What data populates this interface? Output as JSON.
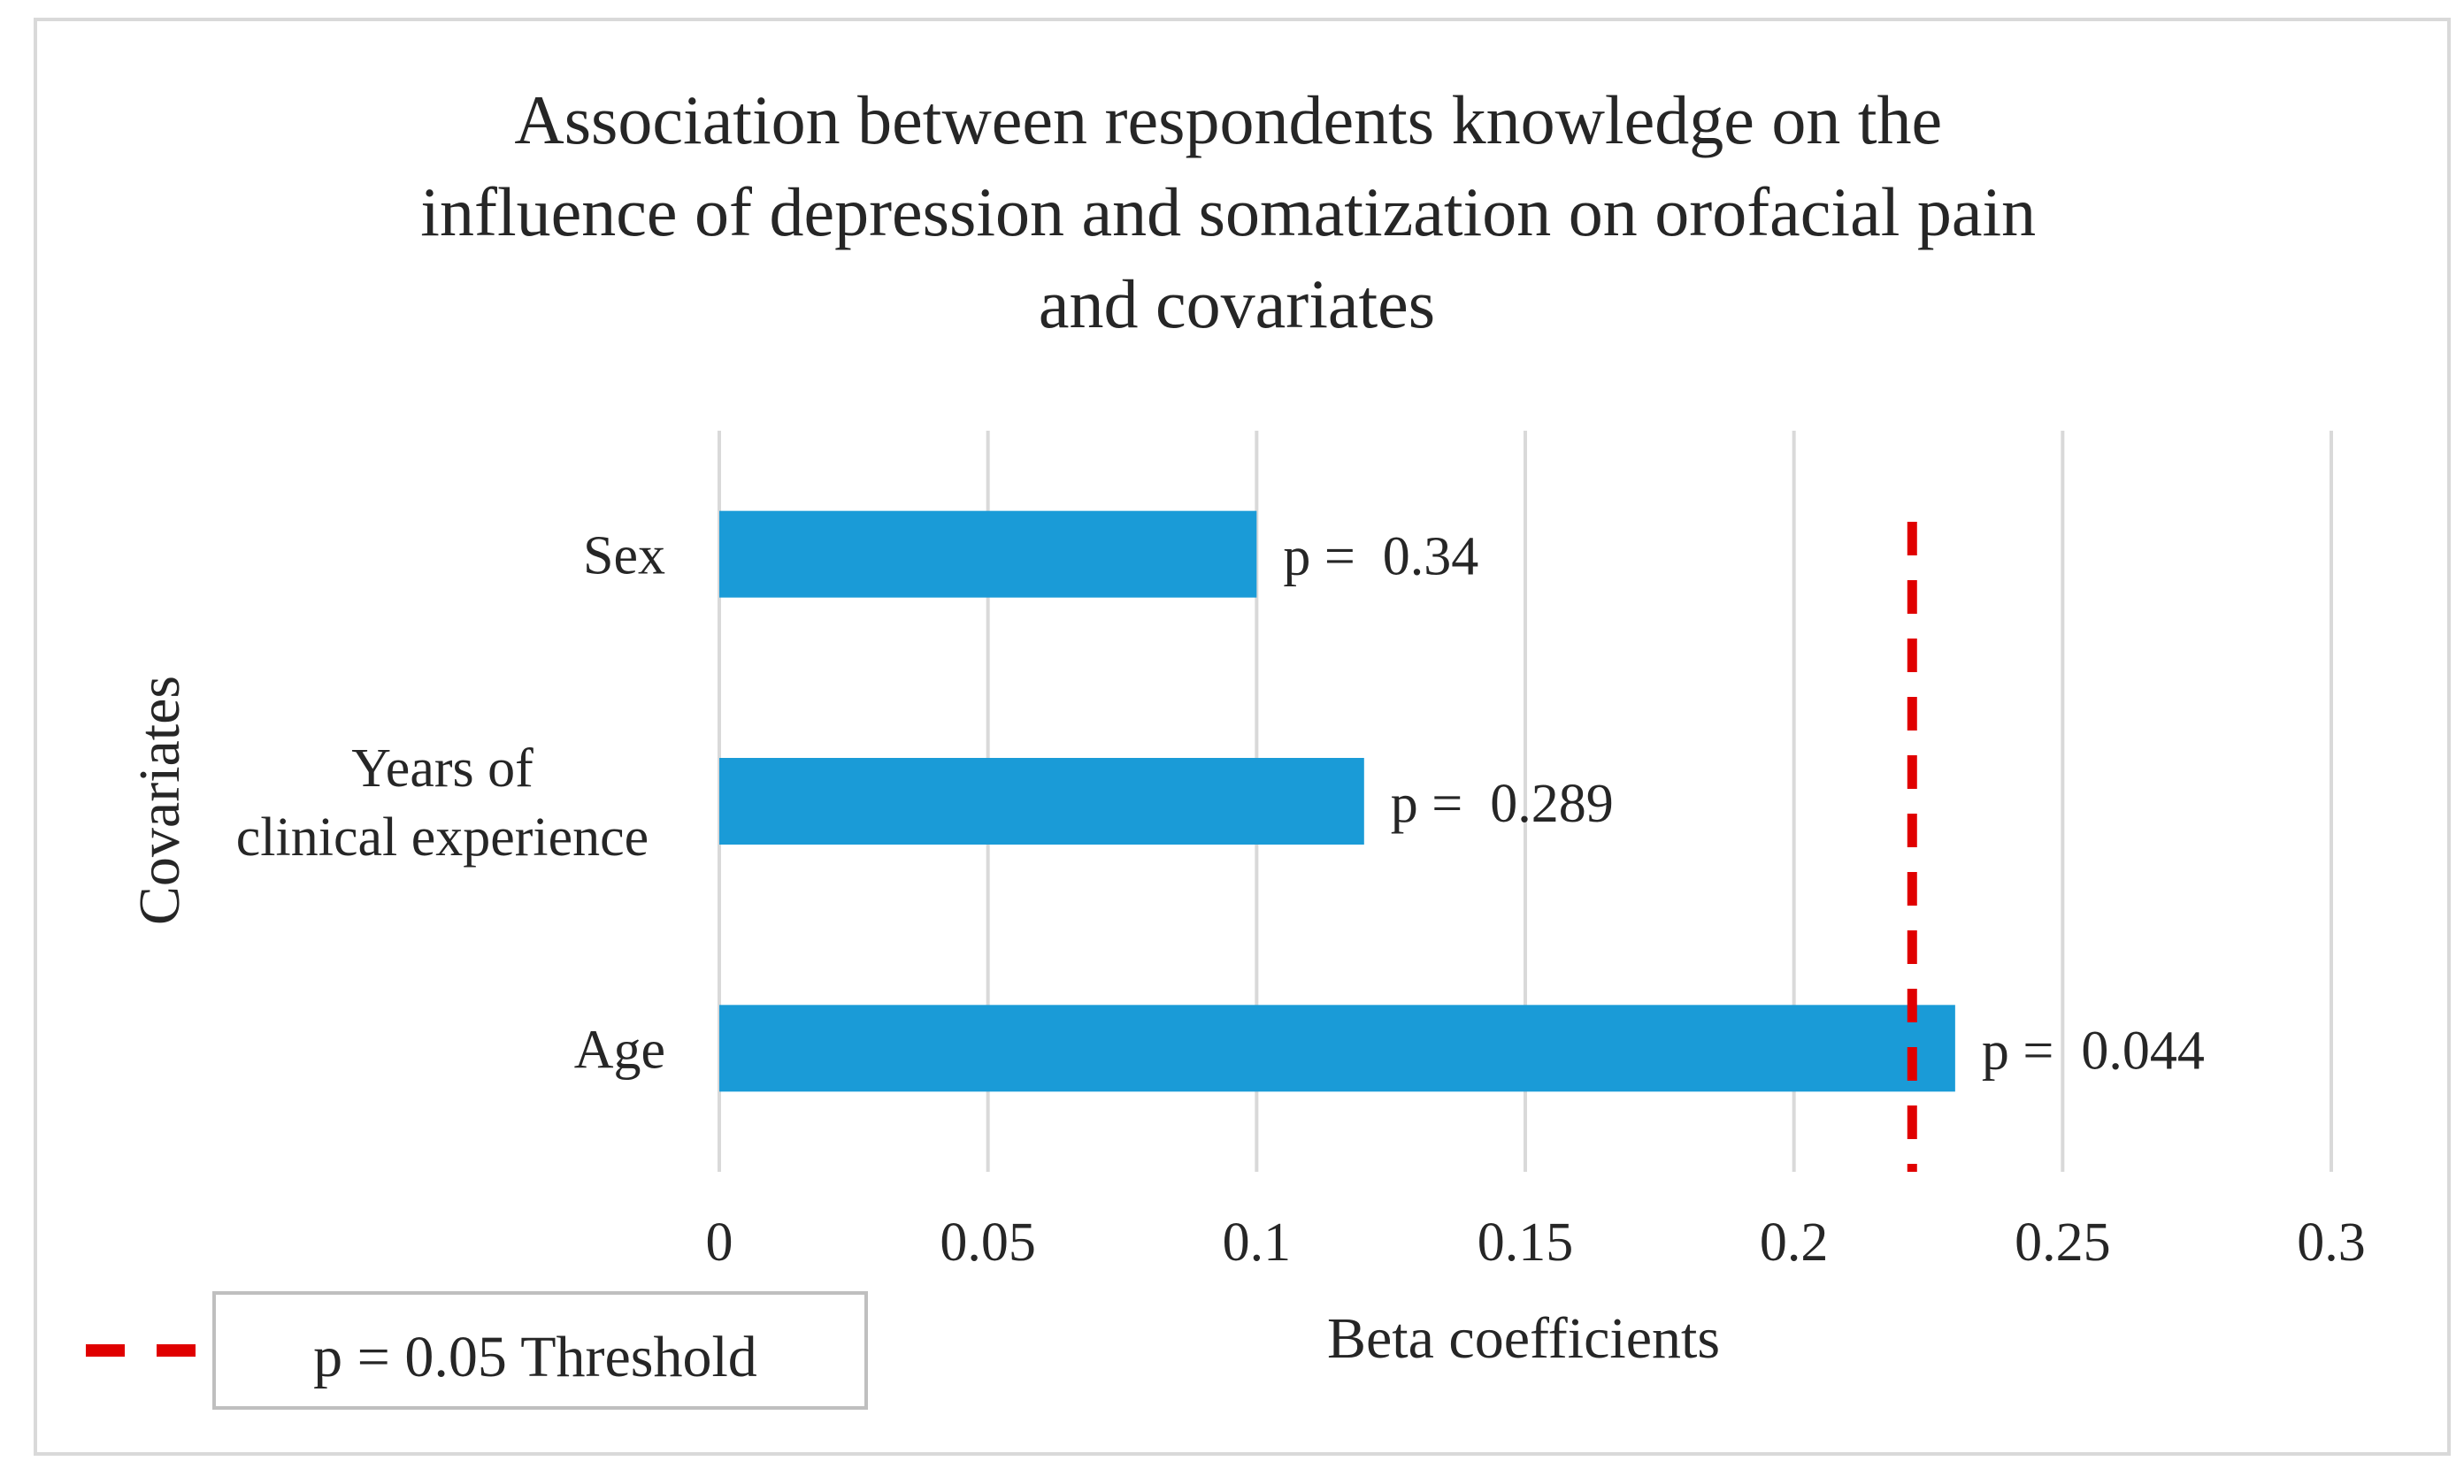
{
  "chart_data": {
    "type": "bar",
    "orientation": "horizontal",
    "title": [
      "Association between respondents knowledge on the",
      "influence of depression and somatization on orofacial pain",
      "and covariates"
    ],
    "xlabel": "Beta coefficients",
    "ylabel": "Covariates",
    "xlim": [
      0,
      0.3
    ],
    "xticks": [
      0,
      0.05,
      0.1,
      0.15,
      0.2,
      0.25,
      0.3
    ],
    "xtick_labels": [
      "0",
      "0.05",
      "0.1",
      "0.15",
      "0.2",
      "0.25",
      "0.3"
    ],
    "grid": "vertical",
    "bar_color": "#1a9bd7",
    "categories": [
      {
        "label_lines": [
          "Sex"
        ],
        "value": 0.1,
        "annotation": "p =  0.34"
      },
      {
        "label_lines": [
          "Years of",
          "clinical experience"
        ],
        "value": 0.12,
        "annotation": "p =  0.289"
      },
      {
        "label_lines": [
          "Age"
        ],
        "value": 0.23,
        "annotation": "p =  0.044"
      }
    ],
    "threshold": {
      "value": 0.222,
      "color": "#e00000",
      "style": "dashed",
      "legend_label": "p = 0.05 Threshold"
    },
    "legend_position": "bottom-left"
  }
}
